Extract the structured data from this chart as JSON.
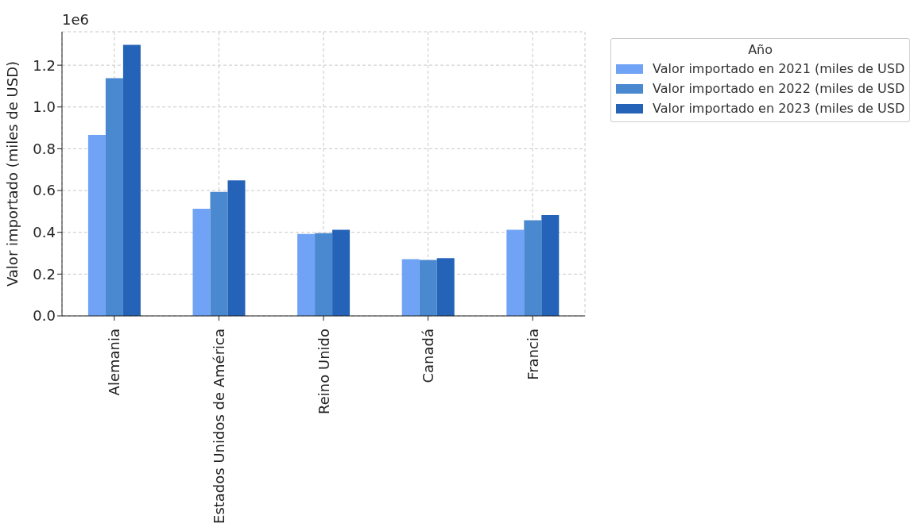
{
  "chart_data": {
    "type": "bar",
    "ylabel": "Valor importado (miles de USD)",
    "legend_title": "Año",
    "legend": "top right",
    "grid": true,
    "categories": [
      "Alemania",
      "Estados Unidos de América",
      "Reino Unido",
      "Canadá",
      "Francia"
    ],
    "series": [
      {
        "name": "Valor importado en 2021 (miles de USD",
        "color": "#70a3f5",
        "values": [
          0.866,
          0.513,
          0.392,
          0.272,
          0.412
        ]
      },
      {
        "name": "Valor importado en 2022 (miles de USD",
        "color": "#4a88d0",
        "values": [
          1.138,
          0.594,
          0.396,
          0.268,
          0.458
        ]
      },
      {
        "name": "Valor importado en 2023 (miles de USD",
        "color": "#2563b8",
        "values": [
          1.297,
          0.649,
          0.412,
          0.276,
          0.482
        ]
      }
    ],
    "ylim": [
      0,
      1.36
    ],
    "yticks": [
      {
        "value": 0,
        "label": "0.0"
      },
      0.2,
      0.4,
      0.6,
      0.8,
      {
        "value": 1,
        "label": "1.0"
      },
      1.2
    ],
    "annotations": [
      "1e6"
    ]
  }
}
